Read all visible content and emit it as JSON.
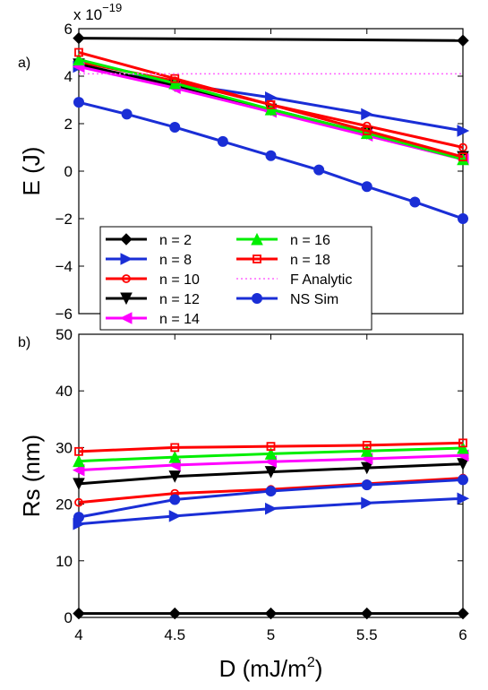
{
  "chart_data": [
    {
      "type": "line",
      "panel_label": "a)",
      "exponent_label": "x 10",
      "exponent_power": "−19",
      "ylabel": "E (J)",
      "xlim": [
        4,
        6
      ],
      "ylim": [
        -6,
        6
      ],
      "y_ticks": [
        {
          "value": -6,
          "label": "−6"
        },
        {
          "value": -4,
          "label": "−4"
        },
        {
          "value": -2,
          "label": "−2"
        },
        {
          "value": 0,
          "label": "0"
        },
        {
          "value": 2,
          "label": "2"
        },
        {
          "value": 4,
          "label": "4"
        },
        {
          "value": 6,
          "label": "6"
        }
      ],
      "series": [
        {
          "name": "n = 2",
          "color": "#000000",
          "marker": "diamond",
          "x": [
            4,
            6
          ],
          "y": [
            5.6,
            5.5
          ]
        },
        {
          "name": "n = 8",
          "color": "#1a2ed6",
          "marker": "triangle-right",
          "x": [
            4,
            4.5,
            5,
            5.5,
            6
          ],
          "y": [
            4.4,
            3.7,
            3.1,
            2.4,
            1.7
          ]
        },
        {
          "name": "n = 10",
          "color": "#ff0000",
          "marker": "circle-open",
          "x": [
            4,
            4.5,
            5,
            5.5,
            6
          ],
          "y": [
            4.6,
            3.8,
            2.8,
            1.9,
            1.0
          ]
        },
        {
          "name": "n = 12",
          "color": "#000000",
          "marker": "triangle-down",
          "x": [
            4,
            4.5,
            5,
            5.5,
            6
          ],
          "y": [
            4.5,
            3.6,
            2.6,
            1.6,
            0.6
          ]
        },
        {
          "name": "n = 14",
          "color": "#ff00ff",
          "marker": "triangle-left",
          "x": [
            4,
            4.5,
            5,
            5.5,
            6
          ],
          "y": [
            4.4,
            3.5,
            2.5,
            1.5,
            0.5
          ]
        },
        {
          "name": "n = 16",
          "color": "#00ee00",
          "marker": "triangle-up",
          "x": [
            4,
            4.5,
            5,
            5.5,
            6
          ],
          "y": [
            4.7,
            3.7,
            2.6,
            1.6,
            0.5
          ]
        },
        {
          "name": "n = 18",
          "color": "#ff0000",
          "marker": "square-open",
          "x": [
            4,
            4.5,
            5,
            5.5,
            6
          ],
          "y": [
            5.0,
            3.9,
            2.8,
            1.7,
            0.6
          ]
        },
        {
          "name": "F Analytic",
          "color": "#ff66ff",
          "marker": "none",
          "dash": "dotted",
          "x": [
            4,
            6
          ],
          "y": [
            4.1,
            4.1
          ]
        },
        {
          "name": "NS Sim",
          "color": "#1a2ed6",
          "marker": "circle-filled",
          "x": [
            4,
            4.25,
            4.5,
            4.75,
            5,
            5.25,
            5.5,
            5.75,
            6
          ],
          "y": [
            2.9,
            2.4,
            1.85,
            1.25,
            0.65,
            0.05,
            -0.65,
            -1.3,
            -2.0
          ]
        }
      ],
      "legend_position": "lower-left"
    },
    {
      "type": "line",
      "panel_label": "b)",
      "xlabel": "D (mJ/m",
      "xlabel_sup": "2",
      "xlabel_end": ")",
      "ylabel": "Rs (nm)",
      "xlim": [
        4,
        6
      ],
      "ylim": [
        0,
        50
      ],
      "x_ticks": [
        {
          "value": 4,
          "label": "4"
        },
        {
          "value": 4.5,
          "label": "4.5"
        },
        {
          "value": 5,
          "label": "5"
        },
        {
          "value": 5.5,
          "label": "5.5"
        },
        {
          "value": 6,
          "label": "6"
        }
      ],
      "y_ticks": [
        {
          "value": 0,
          "label": "0"
        },
        {
          "value": 10,
          "label": "10"
        },
        {
          "value": 20,
          "label": "20"
        },
        {
          "value": 30,
          "label": "30"
        },
        {
          "value": 40,
          "label": "40"
        },
        {
          "value": 50,
          "label": "50"
        }
      ],
      "series": [
        {
          "name": "n = 2",
          "color": "#000000",
          "marker": "diamond",
          "x": [
            4,
            4.5,
            5,
            5.5,
            6
          ],
          "y": [
            0.7,
            0.7,
            0.7,
            0.7,
            0.7
          ]
        },
        {
          "name": "n = 8",
          "color": "#1a2ed6",
          "marker": "triangle-right",
          "x": [
            4,
            4.5,
            5,
            5.5,
            6
          ],
          "y": [
            16.5,
            17.9,
            19.2,
            20.2,
            21.0
          ]
        },
        {
          "name": "n = 10",
          "color": "#ff0000",
          "marker": "circle-open",
          "x": [
            4,
            4.5,
            5,
            5.5,
            6
          ],
          "y": [
            20.3,
            21.9,
            22.6,
            23.6,
            24.6
          ]
        },
        {
          "name": "n = 12",
          "color": "#000000",
          "marker": "triangle-down",
          "x": [
            4,
            4.5,
            5,
            5.5,
            6
          ],
          "y": [
            23.6,
            24.9,
            25.7,
            26.4,
            27.1
          ]
        },
        {
          "name": "n = 14",
          "color": "#ff00ff",
          "marker": "triangle-left",
          "x": [
            4,
            4.5,
            5,
            5.5,
            6
          ],
          "y": [
            26.0,
            26.9,
            27.5,
            28.0,
            28.6
          ]
        },
        {
          "name": "n = 16",
          "color": "#00ee00",
          "marker": "triangle-up",
          "x": [
            4,
            4.5,
            5,
            5.5,
            6
          ],
          "y": [
            27.6,
            28.3,
            28.9,
            29.4,
            29.9
          ]
        },
        {
          "name": "n = 18",
          "color": "#ff0000",
          "marker": "square-open",
          "x": [
            4,
            4.5,
            5,
            5.5,
            6
          ],
          "y": [
            29.3,
            30.0,
            30.2,
            30.4,
            30.8
          ]
        },
        {
          "name": "NS Sim",
          "color": "#1a2ed6",
          "marker": "circle-filled",
          "x": [
            4,
            4.5,
            5,
            5.5,
            6
          ],
          "y": [
            17.7,
            20.8,
            22.3,
            23.4,
            24.3
          ]
        }
      ]
    }
  ]
}
